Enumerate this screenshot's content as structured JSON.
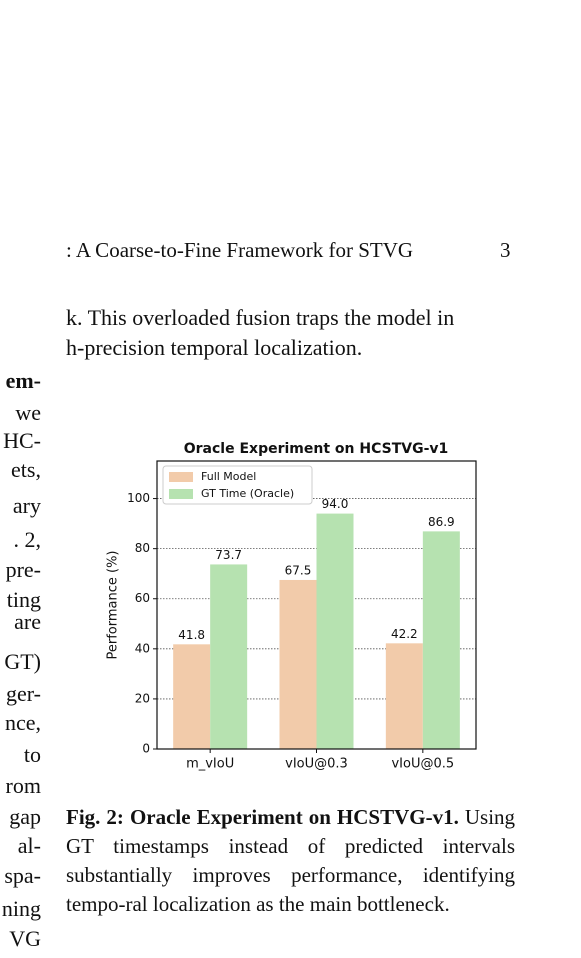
{
  "header": {
    "running_title": ": A Coarse-to-Fine Framework for STVG",
    "page_number": "3"
  },
  "body_lines": [
    "k. This overloaded fusion traps the model in",
    "h-precision temporal localization."
  ],
  "left_column_lines": [
    "em-",
    "we",
    "HC-",
    "ets,",
    "ary",
    ". 2,",
    "pre-",
    "ting",
    "are",
    "GT)",
    "ger-",
    "nce,",
    "to",
    "rom",
    "gap",
    "al-",
    "spa-",
    "ning",
    "VG"
  ],
  "chart_data": {
    "type": "bar",
    "title": "Oracle Experiment on HCSTVG-v1",
    "y_label": "Performance (%)",
    "categories": [
      "m_vIoU",
      "vIoU@0.3",
      "vIoU@0.5"
    ],
    "series": [
      {
        "name": "Full Model",
        "color": "#f2cbaa",
        "values": [
          41.8,
          67.5,
          42.2
        ],
        "value_labels": [
          "41.8",
          "67.5",
          "42.2"
        ]
      },
      {
        "name": "GT Time (Oracle)",
        "color": "#b6e2b0",
        "values": [
          73.7,
          94.0,
          86.9
        ],
        "value_labels": [
          "73.7",
          "94.0",
          "86.9"
        ]
      }
    ],
    "ylim": [
      0,
      115
    ],
    "yticks": [
      0,
      20,
      40,
      60,
      80,
      100
    ],
    "grid": true,
    "legend": "upper-left"
  },
  "caption": {
    "label": "Fig. 2:",
    "title": "Oracle Experiment on HCSTVG-v1.",
    "text": "Using GT timestamps instead of predicted intervals substantially improves performance, identifying tempo-ral localization as the main bottleneck."
  }
}
